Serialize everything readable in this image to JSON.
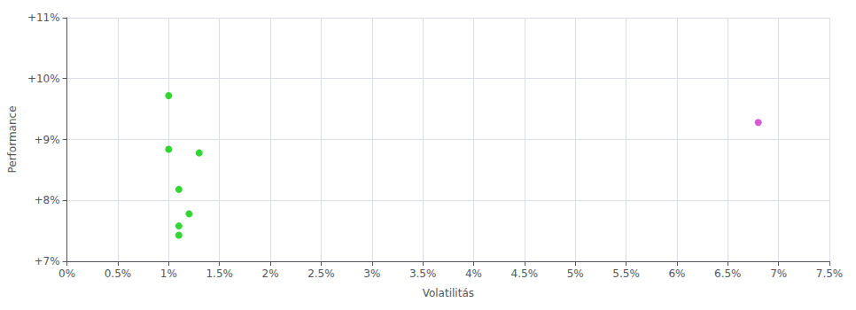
{
  "chart_data": {
    "type": "scatter",
    "xlabel": "Volatilitás",
    "ylabel": "Performance",
    "xlim": [
      0.0,
      0.075
    ],
    "ylim": [
      0.07,
      0.11
    ],
    "xticks": [
      {
        "value": 0.0,
        "label": "0%"
      },
      {
        "value": 0.005,
        "label": "0.5%"
      },
      {
        "value": 0.01,
        "label": "1%"
      },
      {
        "value": 0.015,
        "label": "1.5%"
      },
      {
        "value": 0.02,
        "label": "2%"
      },
      {
        "value": 0.025,
        "label": "2.5%"
      },
      {
        "value": 0.03,
        "label": "3%"
      },
      {
        "value": 0.035,
        "label": "3.5%"
      },
      {
        "value": 0.04,
        "label": "4%"
      },
      {
        "value": 0.045,
        "label": "4.5%"
      },
      {
        "value": 0.05,
        "label": "5%"
      },
      {
        "value": 0.055,
        "label": "5.5%"
      },
      {
        "value": 0.06,
        "label": "6%"
      },
      {
        "value": 0.065,
        "label": "6.5%"
      },
      {
        "value": 0.07,
        "label": "7%"
      },
      {
        "value": 0.075,
        "label": "7.5%"
      }
    ],
    "yticks": [
      {
        "value": 0.07,
        "label": "+7%"
      },
      {
        "value": 0.08,
        "label": "+8%"
      },
      {
        "value": 0.09,
        "label": "+9%"
      },
      {
        "value": 0.1,
        "label": "+10%"
      },
      {
        "value": 0.11,
        "label": "+11%"
      }
    ],
    "series": [
      {
        "color": "#00cc00",
        "x": [
          0.01,
          0.01,
          0.013,
          0.011,
          0.012,
          0.011,
          0.011
        ],
        "values": [
          0.0972,
          0.0884,
          0.0878,
          0.0818,
          0.0778,
          0.0758,
          0.0743
        ]
      },
      {
        "color": "#cc33cc",
        "x": [
          0.068
        ],
        "values": [
          0.0928
        ]
      }
    ],
    "grid": true
  }
}
